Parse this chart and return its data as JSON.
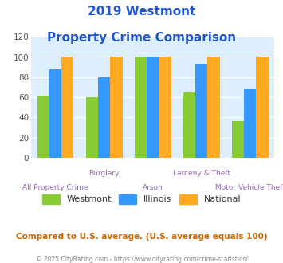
{
  "title_line1": "2019 Westmont",
  "title_line2": "Property Crime Comparison",
  "categories": [
    "All Property Crime",
    "Burglary",
    "Arson",
    "Larceny & Theft",
    "Motor Vehicle Theft"
  ],
  "series": {
    "Westmont": [
      62,
      60,
      100,
      65,
      36
    ],
    "Illinois": [
      88,
      80,
      100,
      93,
      68
    ],
    "National": [
      100,
      100,
      100,
      100,
      100
    ]
  },
  "colors": {
    "Westmont": "#88cc33",
    "Illinois": "#3399ff",
    "National": "#ffaa22"
  },
  "ylim": [
    0,
    120
  ],
  "yticks": [
    0,
    20,
    40,
    60,
    80,
    100,
    120
  ],
  "title_color": "#2255cc",
  "axis_label_color": "#9966bb",
  "legend_label_color": "#333333",
  "subtitle_text": "Compared to U.S. average. (U.S. average equals 100)",
  "subtitle_color": "#cc6600",
  "footer_text": "© 2025 CityRating.com - https://www.cityrating.com/crime-statistics/",
  "footer_color": "#888888",
  "plot_bg_color": "#ddeeff",
  "bar_width": 0.25
}
